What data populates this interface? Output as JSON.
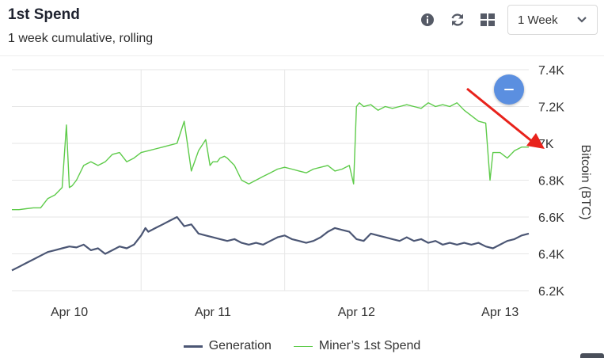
{
  "header": {
    "title": "1st Spend",
    "subtitle": "1 week cumulative, rolling",
    "toolbar": {
      "icons": [
        "info-icon",
        "refresh-icon",
        "grid-icon",
        "chevron-down-icon"
      ],
      "range_select": "1 Week"
    }
  },
  "colors": {
    "generation": "#4b5674",
    "first_spend": "#5ecb4a",
    "fab": "#5b8fe0",
    "annotation_arrow": "#e8221b"
  },
  "chart_data": {
    "type": "line",
    "title": "",
    "xlabel": "",
    "ylabel": "Bitcoin (BTC)",
    "ylim": [
      6200,
      7400
    ],
    "yticks": [
      7400,
      7200,
      7000,
      6800,
      6600,
      6400,
      6200
    ],
    "ytick_labels": [
      "7.4K",
      "7.2K",
      "7K",
      "6.8K",
      "6.6K",
      "6.4K",
      "6.2K"
    ],
    "xlim": [
      0,
      3.6
    ],
    "xticks": [
      0.4,
      1.4,
      2.4,
      3.4
    ],
    "xtick_labels": [
      "Apr 10",
      "Apr 11",
      "Apr 12",
      "Apr 13"
    ],
    "grid": {
      "vertical_lines_at": [
        0.9,
        1.9,
        2.9
      ]
    },
    "legend": "bottom",
    "series": [
      {
        "name": "Generation",
        "x": [
          0,
          0.05,
          0.1,
          0.15,
          0.2,
          0.25,
          0.3,
          0.35,
          0.4,
          0.45,
          0.5,
          0.55,
          0.6,
          0.65,
          0.7,
          0.75,
          0.8,
          0.85,
          0.9,
          0.93,
          0.95,
          1.0,
          1.05,
          1.1,
          1.15,
          1.2,
          1.25,
          1.3,
          1.35,
          1.4,
          1.45,
          1.5,
          1.55,
          1.6,
          1.65,
          1.7,
          1.75,
          1.8,
          1.85,
          1.9,
          1.95,
          2.0,
          2.05,
          2.1,
          2.15,
          2.2,
          2.25,
          2.3,
          2.35,
          2.4,
          2.45,
          2.5,
          2.55,
          2.6,
          2.65,
          2.7,
          2.75,
          2.8,
          2.85,
          2.9,
          2.95,
          3.0,
          3.05,
          3.1,
          3.15,
          3.2,
          3.25,
          3.3,
          3.35,
          3.4,
          3.45,
          3.5,
          3.55,
          3.6
        ],
        "values": [
          6310,
          6330,
          6350,
          6370,
          6390,
          6410,
          6420,
          6430,
          6440,
          6435,
          6450,
          6420,
          6430,
          6400,
          6420,
          6440,
          6430,
          6450,
          6500,
          6540,
          6520,
          6540,
          6560,
          6580,
          6600,
          6550,
          6560,
          6510,
          6500,
          6490,
          6480,
          6470,
          6480,
          6460,
          6450,
          6460,
          6450,
          6470,
          6490,
          6500,
          6480,
          6470,
          6460,
          6470,
          6490,
          6520,
          6540,
          6530,
          6520,
          6480,
          6470,
          6510,
          6500,
          6490,
          6480,
          6470,
          6490,
          6470,
          6480,
          6460,
          6470,
          6450,
          6460,
          6450,
          6460,
          6450,
          6460,
          6440,
          6430,
          6450,
          6470,
          6480,
          6500,
          6510
        ]
      },
      {
        "name": "Miner’s 1st Spend",
        "x": [
          0,
          0.05,
          0.1,
          0.15,
          0.2,
          0.25,
          0.3,
          0.35,
          0.38,
          0.4,
          0.42,
          0.45,
          0.5,
          0.55,
          0.6,
          0.65,
          0.7,
          0.75,
          0.8,
          0.85,
          0.9,
          0.95,
          1.0,
          1.05,
          1.1,
          1.15,
          1.2,
          1.25,
          1.3,
          1.35,
          1.38,
          1.4,
          1.43,
          1.45,
          1.48,
          1.5,
          1.55,
          1.6,
          1.65,
          1.7,
          1.75,
          1.8,
          1.85,
          1.9,
          1.95,
          2.0,
          2.05,
          2.1,
          2.15,
          2.2,
          2.25,
          2.3,
          2.35,
          2.38,
          2.4,
          2.42,
          2.45,
          2.5,
          2.55,
          2.6,
          2.65,
          2.7,
          2.75,
          2.8,
          2.85,
          2.9,
          2.95,
          3.0,
          3.05,
          3.1,
          3.15,
          3.2,
          3.25,
          3.3,
          3.33,
          3.35,
          3.4,
          3.45,
          3.5,
          3.55,
          3.6
        ],
        "values": [
          6640,
          6640,
          6645,
          6650,
          6650,
          6700,
          6720,
          6760,
          7100,
          6760,
          6770,
          6800,
          6880,
          6900,
          6880,
          6900,
          6940,
          6950,
          6900,
          6920,
          6950,
          6960,
          6970,
          6980,
          6990,
          7000,
          7120,
          6850,
          6960,
          7020,
          6880,
          6900,
          6900,
          6920,
          6930,
          6920,
          6880,
          6800,
          6780,
          6800,
          6820,
          6840,
          6860,
          6870,
          6860,
          6850,
          6840,
          6860,
          6870,
          6880,
          6850,
          6860,
          6880,
          6780,
          7200,
          7220,
          7200,
          7210,
          7180,
          7200,
          7190,
          7200,
          7210,
          7200,
          7190,
          7220,
          7200,
          7210,
          7200,
          7220,
          7180,
          7150,
          7120,
          7110,
          6800,
          6950,
          6950,
          6920,
          6960,
          6980,
          6980
        ]
      }
    ]
  }
}
